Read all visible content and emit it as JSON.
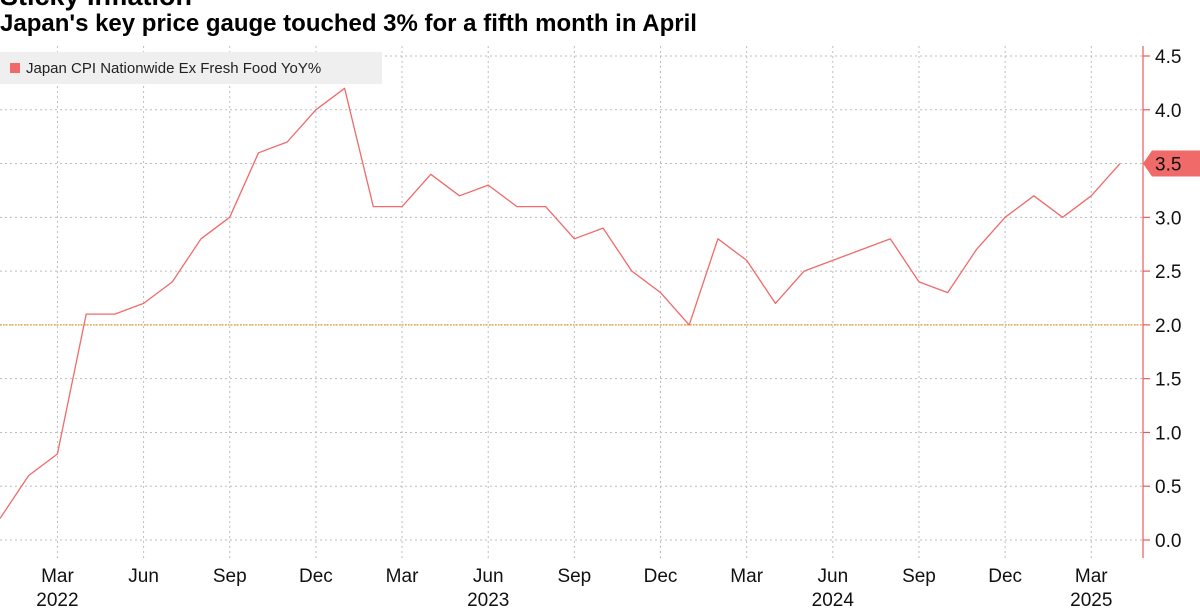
{
  "header": {
    "title": "Sticky Inflation",
    "subtitle": "Japan's key price gauge touched 3% for a fifth month in April"
  },
  "chart_data": {
    "type": "line",
    "series": [
      {
        "name": "Japan CPI Nationwide Ex Fresh Food YoY%",
        "color": "#f06a6a",
        "x": [
          "2022-01",
          "2022-02",
          "2022-03",
          "2022-04",
          "2022-05",
          "2022-06",
          "2022-07",
          "2022-08",
          "2022-09",
          "2022-10",
          "2022-11",
          "2022-12",
          "2023-01",
          "2023-02",
          "2023-03",
          "2023-04",
          "2023-05",
          "2023-06",
          "2023-07",
          "2023-08",
          "2023-09",
          "2023-10",
          "2023-11",
          "2023-12",
          "2024-01",
          "2024-02",
          "2024-03",
          "2024-04",
          "2024-05",
          "2024-06",
          "2024-07",
          "2024-08",
          "2024-09",
          "2024-10",
          "2024-11",
          "2024-12",
          "2025-01",
          "2025-02",
          "2025-03",
          "2025-04"
        ],
        "values": [
          0.2,
          0.6,
          0.8,
          2.1,
          2.1,
          2.2,
          2.4,
          2.8,
          3.0,
          3.6,
          3.7,
          4.0,
          4.2,
          3.1,
          3.1,
          3.4,
          3.2,
          3.3,
          3.1,
          3.1,
          2.8,
          2.9,
          2.5,
          2.3,
          2.0,
          2.8,
          2.6,
          2.2,
          2.5,
          2.6,
          2.7,
          2.8,
          2.4,
          2.3,
          2.7,
          3.0,
          3.2,
          3.0,
          3.2,
          3.5
        ]
      }
    ],
    "reference_line": {
      "y": 2.0,
      "color": "#e8a33d"
    },
    "ylim": [
      0,
      4.5
    ],
    "yticks": [
      "0.0",
      "0.5",
      "1.0",
      "1.5",
      "2.0",
      "2.5",
      "3.0",
      "3.5",
      "4.0",
      "4.5"
    ],
    "ytick_values": [
      0,
      0.5,
      1.0,
      1.5,
      2.0,
      2.5,
      3.0,
      3.5,
      4.0,
      4.5
    ],
    "xticks": [
      {
        "x": "2022-03",
        "month": "Mar",
        "year": "2022"
      },
      {
        "x": "2022-06",
        "month": "Jun",
        "year": ""
      },
      {
        "x": "2022-09",
        "month": "Sep",
        "year": ""
      },
      {
        "x": "2022-12",
        "month": "Dec",
        "year": ""
      },
      {
        "x": "2023-03",
        "month": "Mar",
        "year": ""
      },
      {
        "x": "2023-06",
        "month": "Jun",
        "year": "2023"
      },
      {
        "x": "2023-09",
        "month": "Sep",
        "year": ""
      },
      {
        "x": "2023-12",
        "month": "Dec",
        "year": ""
      },
      {
        "x": "2024-03",
        "month": "Mar",
        "year": ""
      },
      {
        "x": "2024-06",
        "month": "Jun",
        "year": "2024"
      },
      {
        "x": "2024-09",
        "month": "Sep",
        "year": ""
      },
      {
        "x": "2024-12",
        "month": "Dec",
        "year": ""
      },
      {
        "x": "2025-03",
        "month": "Mar",
        "year": "2025"
      }
    ],
    "last_value_label": "3.5",
    "axis_color": "#e85a5a",
    "grid": true,
    "legend_position": "top-left"
  }
}
